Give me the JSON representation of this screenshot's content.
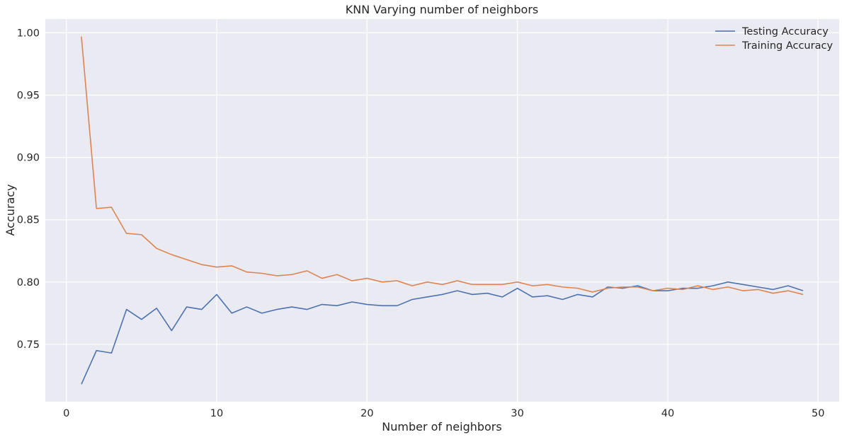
{
  "chart_data": {
    "type": "line",
    "title": "KNN Varying number of neighbors",
    "xlabel": "Number of neighbors",
    "ylabel": "Accuracy",
    "xlim": [
      -1.4,
      51.4
    ],
    "ylim": [
      0.704,
      1.011
    ],
    "xticks": [
      0,
      10,
      20,
      30,
      40,
      50
    ],
    "xtick_labels": [
      "0",
      "10",
      "20",
      "30",
      "40",
      "50"
    ],
    "yticks": [
      0.75,
      0.8,
      0.85,
      0.9,
      0.95,
      1.0
    ],
    "ytick_labels": [
      "0.75",
      "0.80",
      "0.85",
      "0.90",
      "0.95",
      "1.00"
    ],
    "grid": true,
    "legend_position": "top-right",
    "background": "#eaeaf2",
    "grid_color": "#ffffff",
    "x": [
      1,
      2,
      3,
      4,
      5,
      6,
      7,
      8,
      9,
      10,
      11,
      12,
      13,
      14,
      15,
      16,
      17,
      18,
      19,
      20,
      21,
      22,
      23,
      24,
      25,
      26,
      27,
      28,
      29,
      30,
      31,
      32,
      33,
      34,
      35,
      36,
      37,
      38,
      39,
      40,
      41,
      42,
      43,
      44,
      45,
      46,
      47,
      48,
      49
    ],
    "series": [
      {
        "name": "Testing Accuracy",
        "color": "#4c72b0",
        "values": [
          0.718,
          0.745,
          0.743,
          0.778,
          0.77,
          0.779,
          0.761,
          0.78,
          0.778,
          0.79,
          0.775,
          0.78,
          0.775,
          0.778,
          0.78,
          0.778,
          0.782,
          0.781,
          0.784,
          0.782,
          0.781,
          0.781,
          0.786,
          0.788,
          0.79,
          0.793,
          0.79,
          0.791,
          0.788,
          0.795,
          0.788,
          0.789,
          0.786,
          0.79,
          0.788,
          0.796,
          0.795,
          0.797,
          0.793,
          0.793,
          0.795,
          0.795,
          0.797,
          0.8,
          0.798,
          0.796,
          0.794,
          0.797,
          0.793
        ]
      },
      {
        "name": "Training Accuracy",
        "color": "#dd8452",
        "values": [
          0.997,
          0.859,
          0.86,
          0.839,
          0.838,
          0.827,
          0.822,
          0.818,
          0.814,
          0.812,
          0.813,
          0.808,
          0.807,
          0.805,
          0.806,
          0.809,
          0.803,
          0.806,
          0.801,
          0.803,
          0.8,
          0.801,
          0.797,
          0.8,
          0.798,
          0.801,
          0.798,
          0.798,
          0.798,
          0.8,
          0.797,
          0.798,
          0.796,
          0.795,
          0.792,
          0.795,
          0.796,
          0.796,
          0.793,
          0.795,
          0.794,
          0.797,
          0.794,
          0.796,
          0.793,
          0.794,
          0.791,
          0.793,
          0.79
        ]
      }
    ]
  }
}
